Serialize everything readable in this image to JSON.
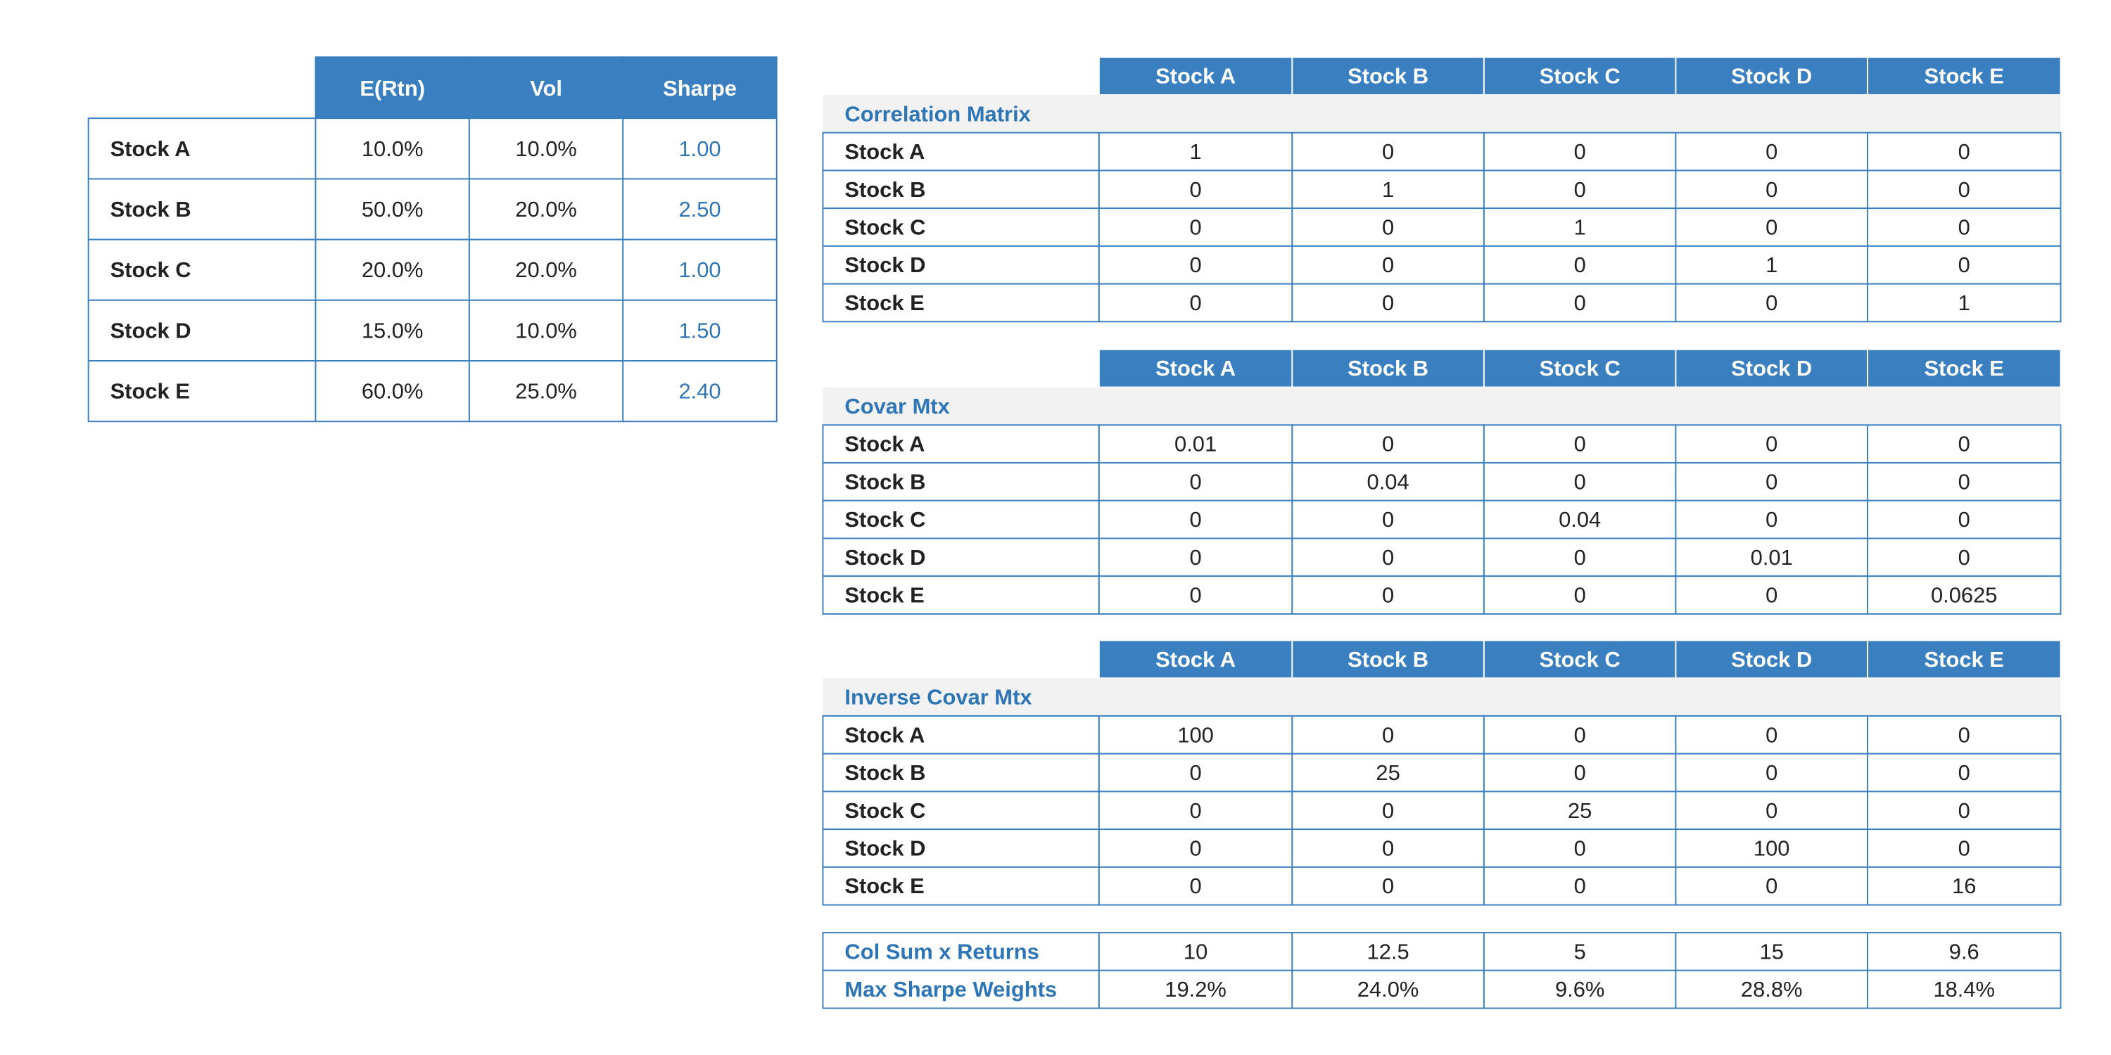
{
  "summary": {
    "columns": [
      "E(Rtn)",
      "Vol",
      "Sharpe"
    ],
    "rows": [
      [
        "Stock A",
        "10.0%",
        "10.0%",
        "1.00"
      ],
      [
        "Stock B",
        "50.0%",
        "20.0%",
        "2.50"
      ],
      [
        "Stock C",
        "20.0%",
        "20.0%",
        "1.00"
      ],
      [
        "Stock D",
        "15.0%",
        "10.0%",
        "1.50"
      ],
      [
        "Stock E",
        "60.0%",
        "25.0%",
        "2.40"
      ]
    ]
  },
  "matrices": [
    {
      "title": "Correlation Matrix",
      "columns": [
        "Stock A",
        "Stock B",
        "Stock C",
        "Stock D",
        "Stock E"
      ],
      "rows": [
        [
          "Stock A",
          "1",
          "0",
          "0",
          "0",
          "0"
        ],
        [
          "Stock B",
          "0",
          "1",
          "0",
          "0",
          "0"
        ],
        [
          "Stock C",
          "0",
          "0",
          "1",
          "0",
          "0"
        ],
        [
          "Stock D",
          "0",
          "0",
          "0",
          "1",
          "0"
        ],
        [
          "Stock E",
          "0",
          "0",
          "0",
          "0",
          "1"
        ]
      ]
    },
    {
      "title": "Covar Mtx",
      "columns": [
        "Stock A",
        "Stock B",
        "Stock C",
        "Stock D",
        "Stock E"
      ],
      "rows": [
        [
          "Stock A",
          "0.01",
          "0",
          "0",
          "0",
          "0"
        ],
        [
          "Stock B",
          "0",
          "0.04",
          "0",
          "0",
          "0"
        ],
        [
          "Stock C",
          "0",
          "0",
          "0.04",
          "0",
          "0"
        ],
        [
          "Stock D",
          "0",
          "0",
          "0",
          "0.01",
          "0"
        ],
        [
          "Stock E",
          "0",
          "0",
          "0",
          "0",
          "0.0625"
        ]
      ]
    },
    {
      "title": "Inverse Covar Mtx",
      "columns": [
        "Stock A",
        "Stock B",
        "Stock C",
        "Stock D",
        "Stock E"
      ],
      "rows": [
        [
          "Stock A",
          "100",
          "0",
          "0",
          "0",
          "0"
        ],
        [
          "Stock B",
          "0",
          "25",
          "0",
          "0",
          "0"
        ],
        [
          "Stock C",
          "0",
          "0",
          "25",
          "0",
          "0"
        ],
        [
          "Stock D",
          "0",
          "0",
          "0",
          "100",
          "0"
        ],
        [
          "Stock E",
          "0",
          "0",
          "0",
          "0",
          "16"
        ]
      ]
    }
  ],
  "footer": {
    "rows": [
      [
        "Col Sum x Returns",
        "10",
        "12.5",
        "5",
        "15",
        "9.6"
      ],
      [
        "Max Sharpe Weights",
        "19.2%",
        "24.0%",
        "9.6%",
        "28.8%",
        "18.4%"
      ]
    ]
  }
}
